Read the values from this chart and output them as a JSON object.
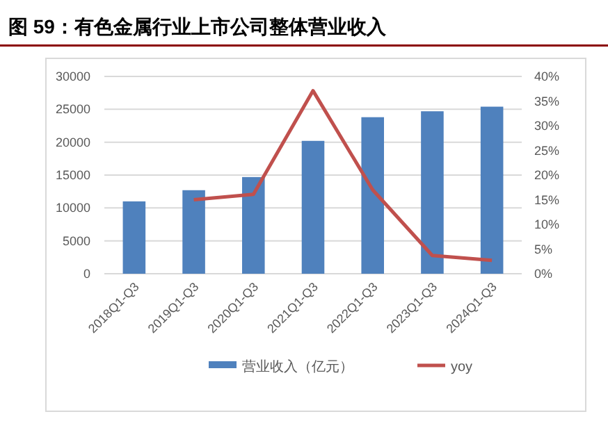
{
  "chart_data": {
    "type": "bar",
    "title": "图 59：有色金属行业上市公司整体营业收入",
    "categories": [
      "2018Q1-Q3",
      "2019Q1-Q3",
      "2020Q1-Q3",
      "2021Q1-Q3",
      "2022Q1-Q3",
      "2023Q1-Q3",
      "2024Q1-Q3"
    ],
    "series": [
      {
        "name": "营业收入（亿元）",
        "color": "#4f81bd",
        "values": [
          11000,
          12700,
          14700,
          20200,
          23800,
          24700,
          25400
        ]
      },
      {
        "name": "yoy",
        "type": "line",
        "axis": "y2",
        "color": "#c0504d",
        "values": [
          null,
          15.0,
          16.1,
          37.1,
          17.0,
          3.7,
          2.7
        ]
      }
    ],
    "ylim": [
      0,
      30000
    ],
    "yticks": [
      0,
      5000,
      10000,
      15000,
      20000,
      25000,
      30000
    ],
    "y2lim": [
      0,
      40
    ],
    "y2ticks": [
      {
        "value": 0,
        "label": "0%"
      },
      {
        "value": 5,
        "label": "5%"
      },
      {
        "value": 10,
        "label": "10%"
      },
      {
        "value": 15,
        "label": "15%"
      },
      {
        "value": 20,
        "label": "20%"
      },
      {
        "value": 25,
        "label": "25%"
      },
      {
        "value": 30,
        "label": "30%"
      },
      {
        "value": 35,
        "label": "35%"
      },
      {
        "value": 40,
        "label": "40%"
      }
    ],
    "grid": "y",
    "legend": "bottom",
    "marker": "none"
  }
}
